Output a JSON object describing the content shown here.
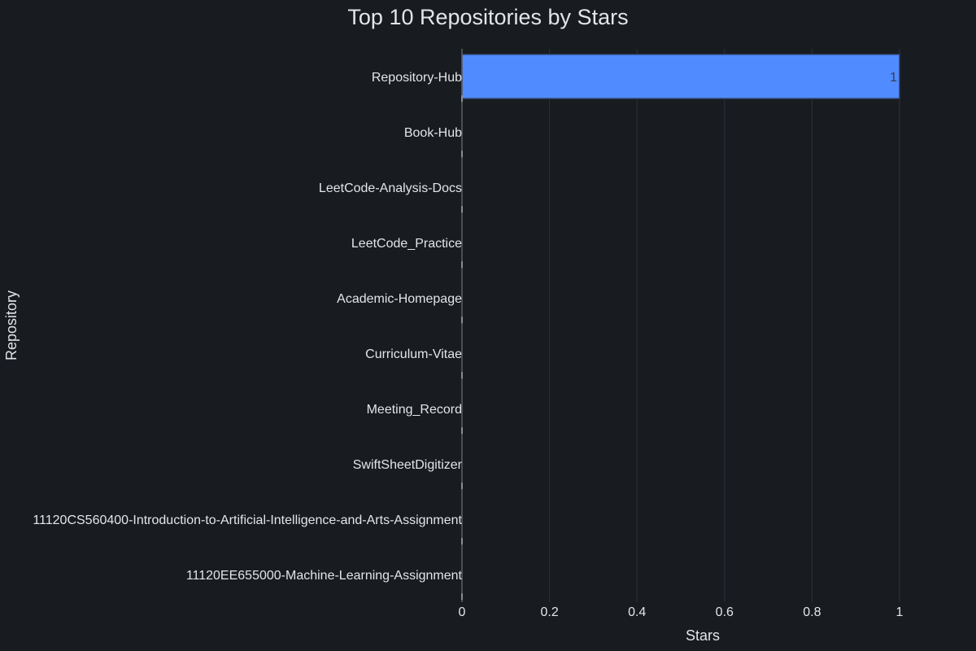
{
  "colors": {
    "background": "#181b20",
    "bar": "#508cff",
    "bar_edge": "#2c3e66",
    "grid": "#2e3137",
    "axis": "#5d6066",
    "text": "#e3e5e8",
    "label_on_bar": "#353c4a"
  },
  "chart_data": {
    "type": "bar",
    "orientation": "horizontal",
    "title": "Top 10 Repositories by Stars",
    "xlabel": "Stars",
    "ylabel": "Repository",
    "xlim": [
      0,
      1
    ],
    "xticks": [
      0,
      0.2,
      0.4,
      0.6,
      0.8,
      1
    ],
    "xtick_labels": [
      "0",
      "0.2",
      "0.4",
      "0.6",
      "0.8",
      "1"
    ],
    "grid": "vertical",
    "categories": [
      "Repository-Hub",
      "Book-Hub",
      "LeetCode-Analysis-Docs",
      "LeetCode_Practice",
      "Academic-Homepage",
      "Curriculum-Vitae",
      "Meeting_Record",
      "SwiftSheetDigitizer",
      "11120CS560400-Introduction-to-Artificial-Intelligence-and-Arts-Assignment",
      "11120EE655000-Machine-Learning-Assignment"
    ],
    "values": [
      1,
      0,
      0,
      0,
      0,
      0,
      0,
      0,
      0,
      0
    ],
    "data_labels": [
      "1",
      "",
      "",
      "",
      "",
      "",
      "",
      "",
      "",
      ""
    ]
  }
}
